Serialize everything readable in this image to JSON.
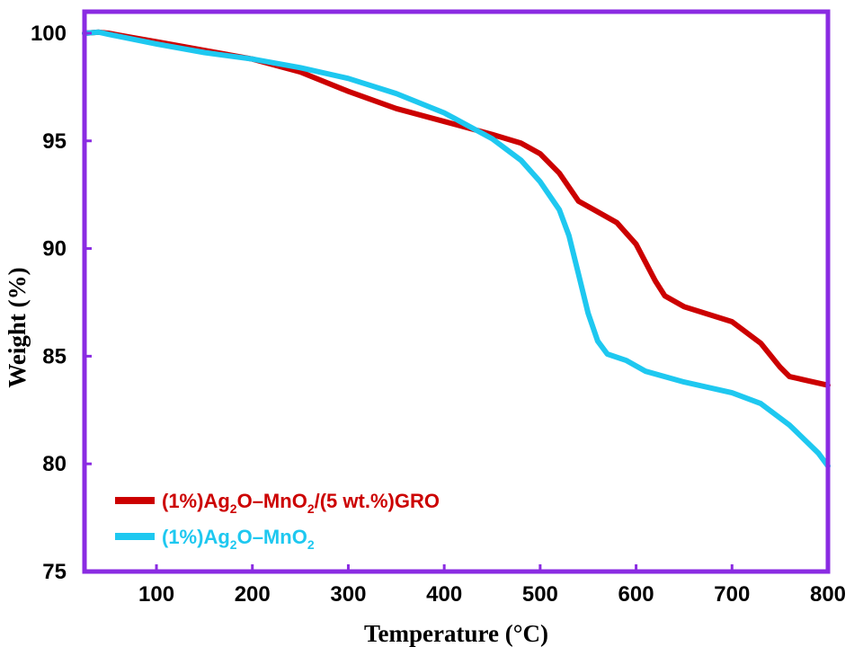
{
  "chart_data": {
    "type": "line",
    "title": "",
    "xlabel": "Temperature (°C)",
    "ylabel": "Weight (%)",
    "xlim": [
      25,
      800
    ],
    "ylim": [
      75,
      101
    ],
    "x_ticks": [
      100,
      200,
      300,
      400,
      500,
      600,
      700,
      800
    ],
    "y_ticks": [
      75,
      80,
      85,
      90,
      95,
      100
    ],
    "grid": false,
    "frame_color": "#8a2be2",
    "legend_position": "bottom-left",
    "series": [
      {
        "legend_parts": [
          "(1%)Ag",
          "2",
          "O–MnO",
          "2",
          "/(5 wt.%)GRO"
        ],
        "color": "#cc0000",
        "points": [
          [
            25,
            100.0
          ],
          [
            40,
            100.05
          ],
          [
            50,
            100.0
          ],
          [
            75,
            99.8
          ],
          [
            100,
            99.6
          ],
          [
            150,
            99.2
          ],
          [
            200,
            98.8
          ],
          [
            250,
            98.2
          ],
          [
            300,
            97.3
          ],
          [
            350,
            96.5
          ],
          [
            400,
            95.9
          ],
          [
            450,
            95.3
          ],
          [
            480,
            94.9
          ],
          [
            500,
            94.4
          ],
          [
            520,
            93.5
          ],
          [
            540,
            92.2
          ],
          [
            560,
            91.7
          ],
          [
            580,
            91.2
          ],
          [
            600,
            90.2
          ],
          [
            620,
            88.5
          ],
          [
            630,
            87.8
          ],
          [
            650,
            87.3
          ],
          [
            700,
            86.6
          ],
          [
            730,
            85.6
          ],
          [
            750,
            84.5
          ],
          [
            760,
            84.05
          ],
          [
            780,
            83.85
          ],
          [
            800,
            83.65
          ]
        ]
      },
      {
        "legend_parts": [
          "(1%)Ag",
          "2",
          "O–MnO",
          "2"
        ],
        "color": "#1ec8f0",
        "points": [
          [
            25,
            100.0
          ],
          [
            40,
            100.05
          ],
          [
            50,
            99.95
          ],
          [
            100,
            99.5
          ],
          [
            150,
            99.1
          ],
          [
            200,
            98.8
          ],
          [
            250,
            98.4
          ],
          [
            300,
            97.9
          ],
          [
            350,
            97.2
          ],
          [
            400,
            96.3
          ],
          [
            450,
            95.1
          ],
          [
            480,
            94.1
          ],
          [
            500,
            93.1
          ],
          [
            520,
            91.8
          ],
          [
            530,
            90.6
          ],
          [
            540,
            88.8
          ],
          [
            550,
            87.0
          ],
          [
            560,
            85.7
          ],
          [
            570,
            85.1
          ],
          [
            590,
            84.8
          ],
          [
            610,
            84.3
          ],
          [
            650,
            83.8
          ],
          [
            700,
            83.3
          ],
          [
            730,
            82.8
          ],
          [
            760,
            81.8
          ],
          [
            790,
            80.5
          ],
          [
            800,
            79.9
          ]
        ]
      }
    ]
  }
}
